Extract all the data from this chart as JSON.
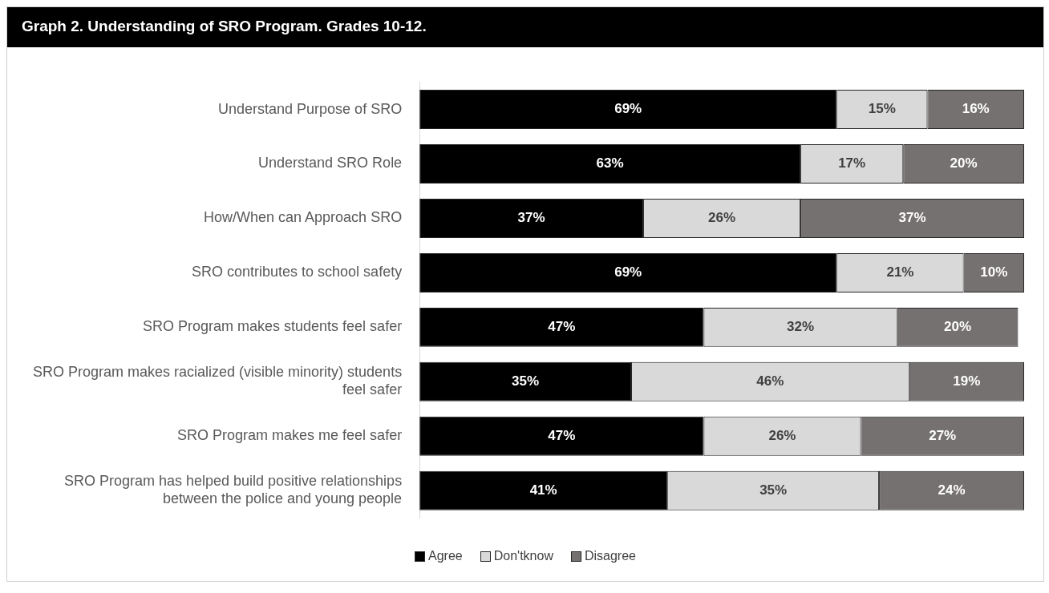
{
  "chart_data": {
    "type": "bar",
    "orientation": "horizontal",
    "stacked": true,
    "title": "Graph 2. Understanding of SRO Program. Grades 10-12.",
    "categories": [
      "Understand Purpose of SRO",
      "Understand SRO Role",
      "How/When can Approach SRO",
      "SRO contributes to school safety",
      "SRO Program makes students feel safer",
      "SRO Program makes racialized (visible minority) students feel safer",
      "SRO Program makes me feel safer",
      "SRO Program has helped build positive relationships between the police and young people"
    ],
    "series": [
      {
        "name": "Agree",
        "color": "#000000",
        "values": [
          69,
          63,
          37,
          69,
          47,
          35,
          47,
          41
        ],
        "value_labels": [
          "69%",
          "63%",
          "37%",
          "69%",
          "47%",
          "35%",
          "47%",
          "41%"
        ]
      },
      {
        "name": "Don'tknow",
        "color": "#d9d9d9",
        "values": [
          15,
          17,
          26,
          21,
          32,
          46,
          26,
          35
        ],
        "value_labels": [
          "15%",
          "17%",
          "26%",
          "21%",
          "32%",
          "46%",
          "26%",
          "35%"
        ]
      },
      {
        "name": "Disagree",
        "color": "#767171",
        "values": [
          16,
          20,
          37,
          10,
          20,
          19,
          27,
          24
        ],
        "value_labels": [
          "16%",
          "20%",
          "37%",
          "10%",
          "20%",
          "19%",
          "27%",
          "24%"
        ]
      }
    ],
    "legend": "bottom",
    "grid": false
  }
}
